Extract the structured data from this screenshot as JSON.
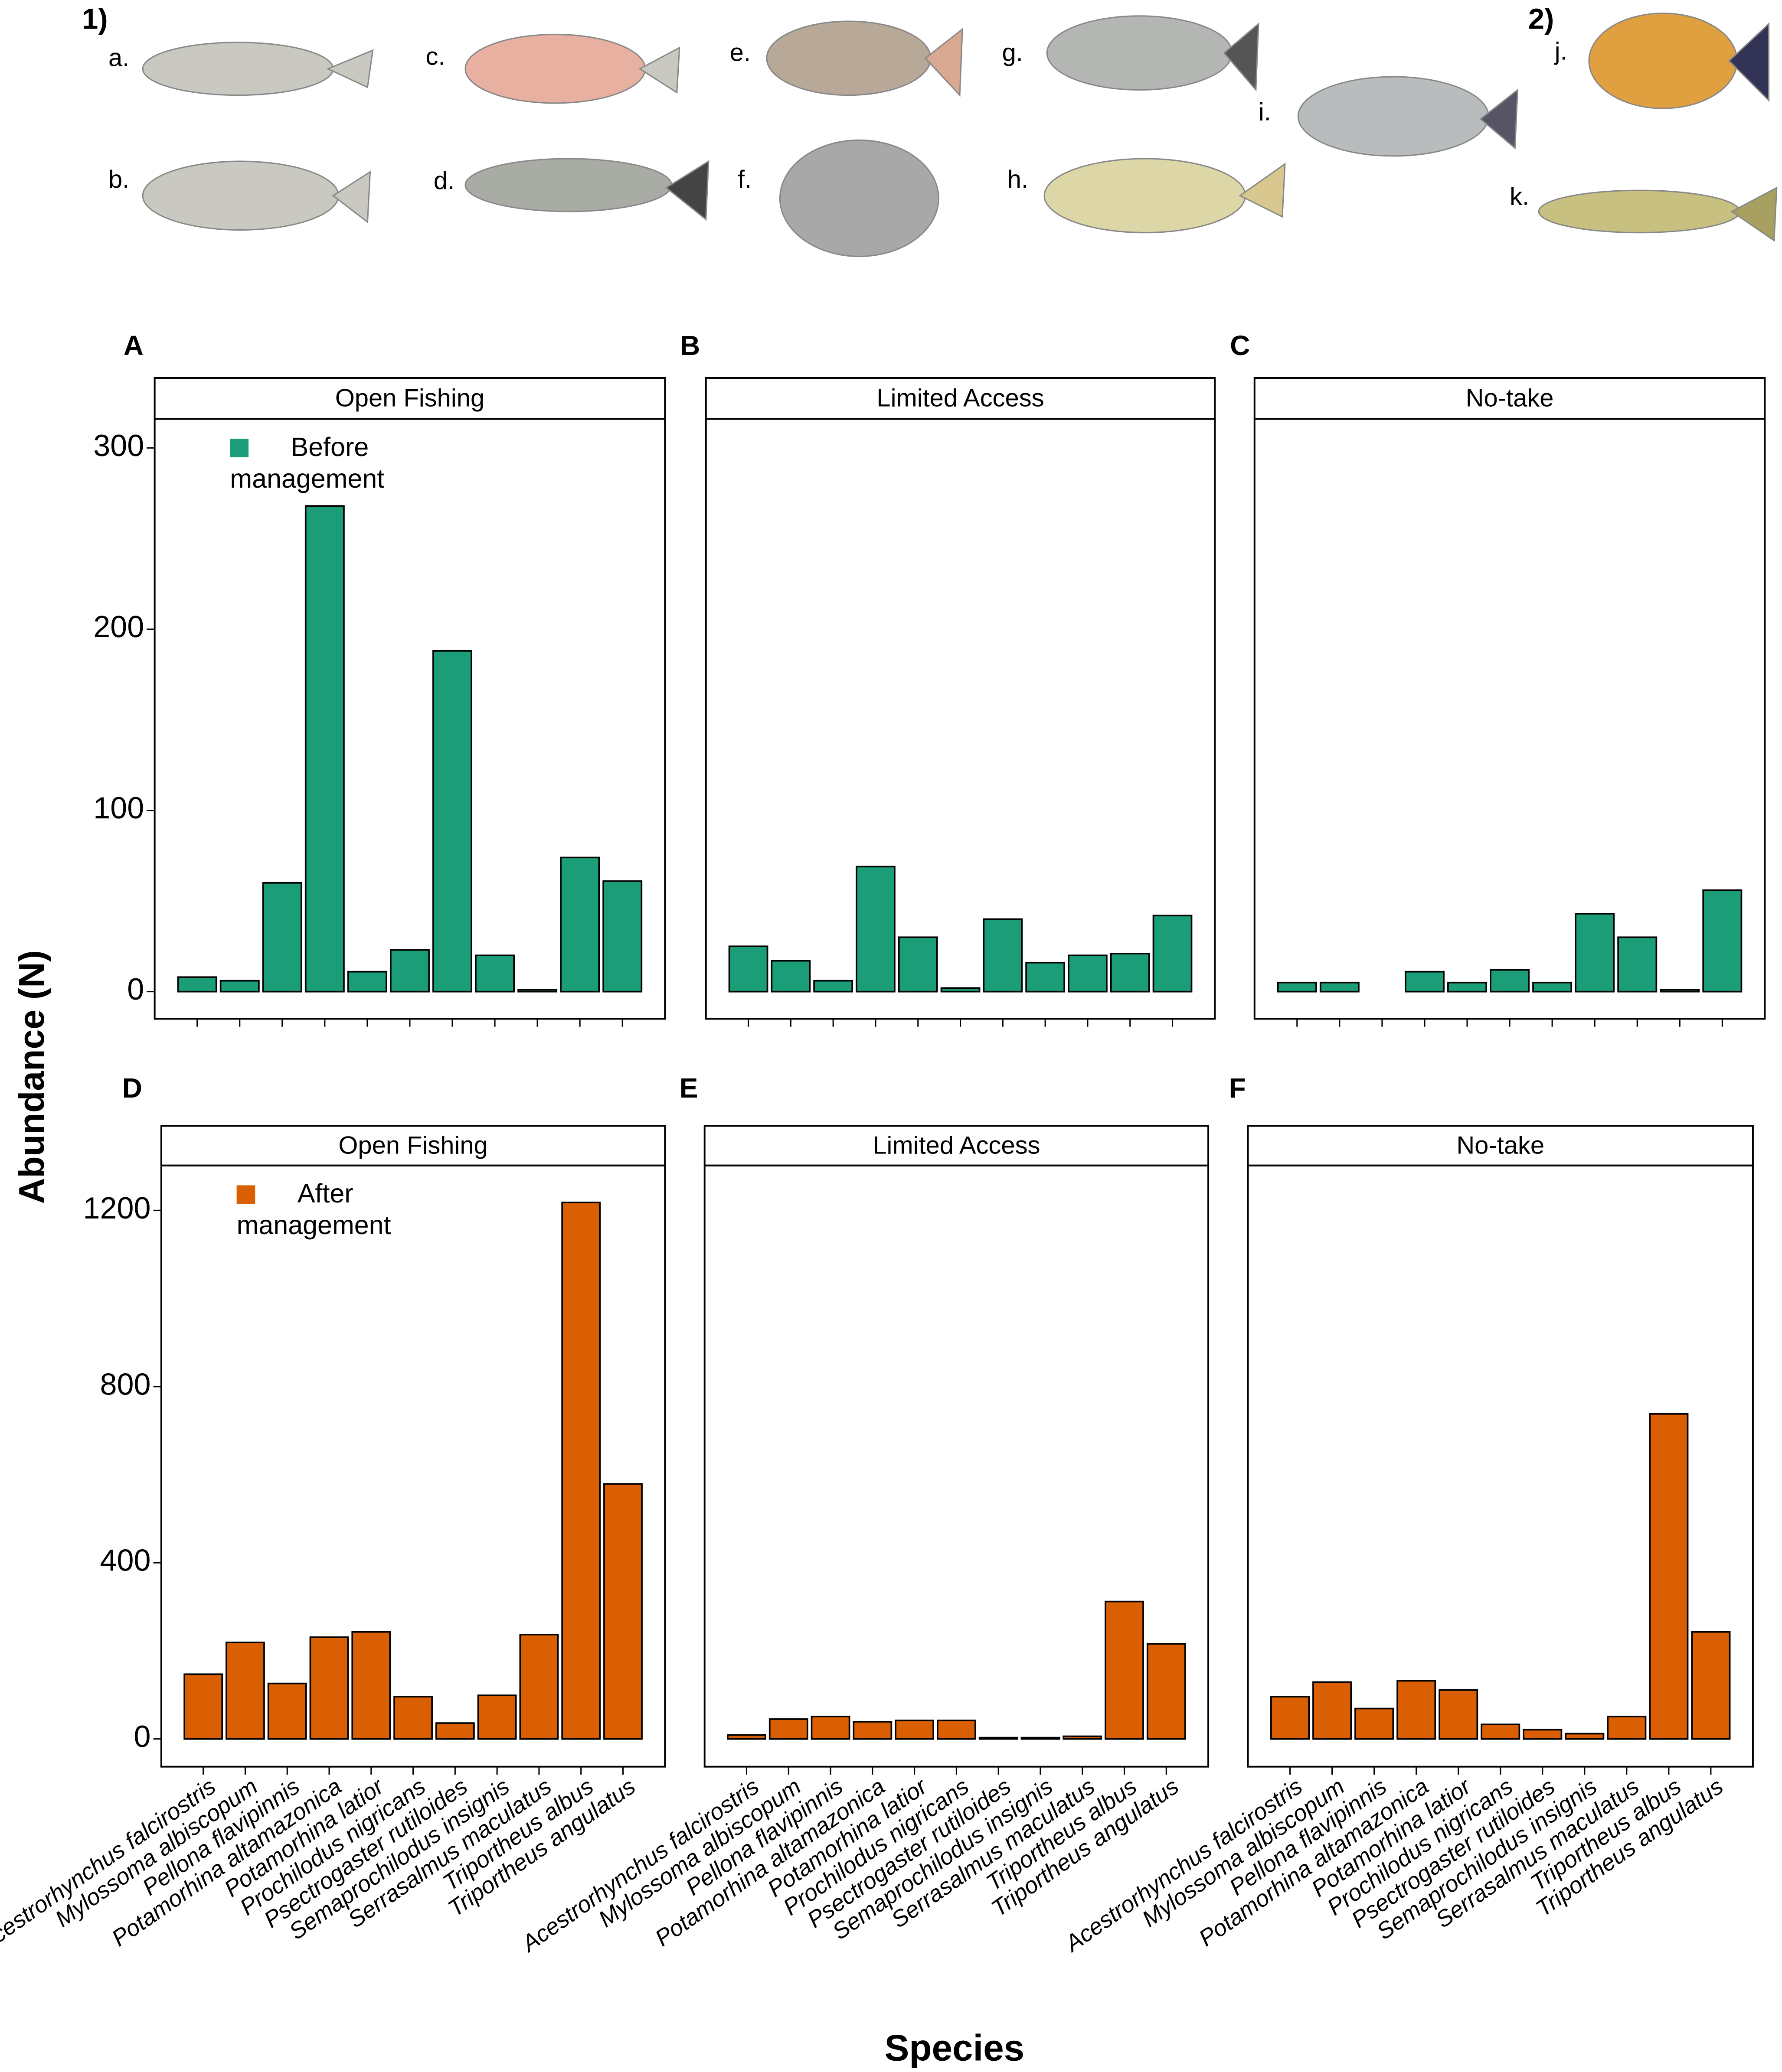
{
  "section_labels": [
    "1)",
    "2)"
  ],
  "fish_labels": [
    "a.",
    "b.",
    "c.",
    "d.",
    "e.",
    "f.",
    "g.",
    "h.",
    "i.",
    "j.",
    "k."
  ],
  "ylabel": "Abundance (N)",
  "xlabel": "Species",
  "chart_data": [
    {
      "type": "bar",
      "panel": "A",
      "title": "Open Fishing",
      "categories": [
        null,
        null,
        null,
        null,
        null,
        null,
        null,
        null,
        null,
        null,
        null
      ],
      "series": [
        {
          "name": "Before management",
          "color": "#1b9e77",
          "values": [
            8,
            6,
            60,
            268,
            11,
            23,
            188,
            20,
            1,
            74,
            61
          ]
        }
      ],
      "ylim": [
        -15,
        316
      ],
      "yticks": [
        0,
        100,
        200,
        300
      ]
    },
    {
      "type": "bar",
      "panel": "B",
      "title": "Limited Access",
      "categories": [
        null,
        null,
        null,
        null,
        null,
        null,
        null,
        null,
        null,
        null,
        null
      ],
      "series": [
        {
          "color": "#1b9e77",
          "values": [
            25,
            17,
            6,
            69,
            30,
            2,
            40,
            16,
            20,
            21,
            42
          ]
        }
      ],
      "ylim": [
        -15,
        316
      ]
    },
    {
      "type": "bar",
      "panel": "C",
      "title": "No-take",
      "categories": [
        null,
        null,
        null,
        null,
        null,
        null,
        null,
        null,
        null,
        null,
        null
      ],
      "series": [
        {
          "color": "#1b9e77",
          "values": [
            5,
            5,
            0,
            11,
            5,
            12,
            5,
            43,
            30,
            1,
            56
          ]
        }
      ],
      "ylim": [
        -15,
        316
      ]
    },
    {
      "type": "bar",
      "panel": "D",
      "title": "Open Fishing",
      "categories": [
        "Acestrorhynchus falcirostris",
        "Mylossoma albiscopum",
        "Pellona flavipinnis",
        "Potamorhina altamazonica",
        "Potamorhina latior",
        "Prochilodus nigricans",
        "Psectrogaster rutiloides",
        "Semaprochilodus insignis",
        "Serrasalmus maculatus",
        "Triportheus albus",
        "Triportheus angulatus"
      ],
      "series": [
        {
          "name": "After management",
          "color": "#d95f02",
          "values": [
            147,
            219,
            126,
            231,
            243,
            96,
            36,
            99,
            237,
            1218,
            579
          ]
        }
      ],
      "ylim": [
        -63,
        1302
      ],
      "yticks": [
        0,
        400,
        800,
        1200
      ]
    },
    {
      "type": "bar",
      "panel": "E",
      "title": "Limited Access",
      "categories": [
        "Acestrorhynchus falcirostris",
        "Mylossoma albiscopum",
        "Pellona flavipinnis",
        "Potamorhina altamazonica",
        "Potamorhina latior",
        "Prochilodus nigricans",
        "Psectrogaster rutiloides",
        "Semaprochilodus insignis",
        "Serrasalmus maculatus",
        "Triportheus albus",
        "Triportheus angulatus"
      ],
      "series": [
        {
          "color": "#d95f02",
          "values": [
            9,
            45,
            51,
            39,
            42,
            42,
            3,
            3,
            6,
            312,
            216
          ]
        }
      ],
      "ylim": [
        -63,
        1302
      ]
    },
    {
      "type": "bar",
      "panel": "F",
      "title": "No-take",
      "categories": [
        "Acestrorhynchus falcirostris",
        "Mylossoma albiscopum",
        "Pellona flavipinnis",
        "Potamorhina altamazonica",
        "Potamorhina latior",
        "Prochilodus nigricans",
        "Psectrogaster rutiloides",
        "Semaprochilodus insignis",
        "Serrasalmus maculatus",
        "Triportheus albus",
        "Triportheus angulatus"
      ],
      "series": [
        {
          "color": "#d95f02",
          "values": [
            96,
            129,
            69,
            132,
            111,
            33,
            21,
            12,
            51,
            738,
            243
          ]
        }
      ],
      "ylim": [
        -63,
        1302
      ]
    }
  ]
}
